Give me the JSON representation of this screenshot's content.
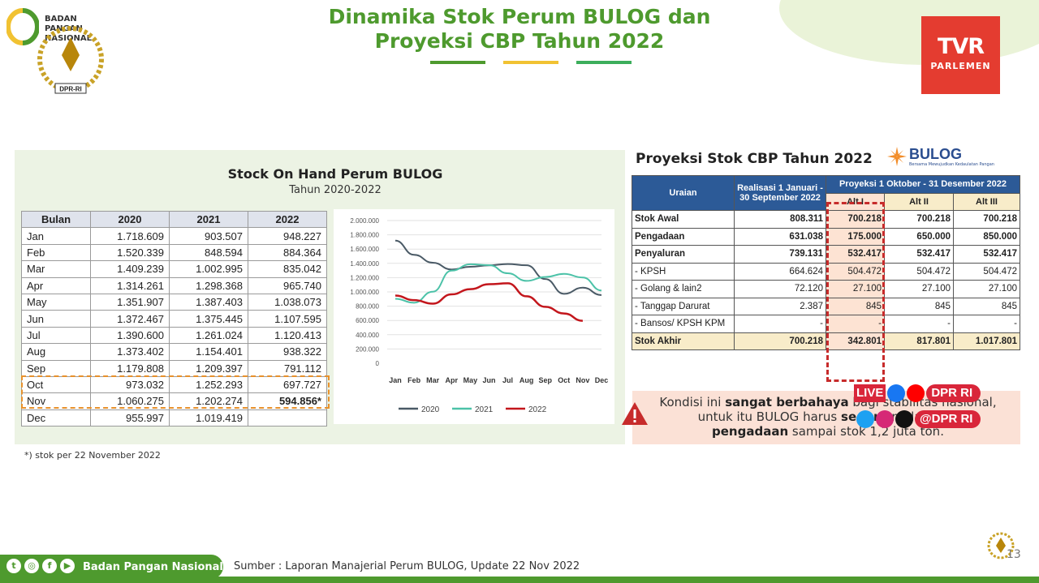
{
  "header": {
    "title_line1": "Dinamika Stok Perum BULOG dan",
    "title_line2": "Proyeksi CBP Tahun 2022",
    "logo_text": "BADAN\nPANGAN\nNASIONAL",
    "dpr_label": "DPR-RI",
    "tvr_big": "TVR",
    "tvr_small": "PARLEMEN",
    "bar_colors": [
      "#4e9a2e",
      "#f1c232",
      "#3cae5c"
    ]
  },
  "left": {
    "title": "Stock On Hand Perum BULOG",
    "subtitle": "Tahun 2020-2022",
    "table": {
      "headers": [
        "Bulan",
        "2020",
        "2021",
        "2022"
      ],
      "rows": [
        [
          "Jan",
          "1.718.609",
          "903.507",
          "948.227"
        ],
        [
          "Feb",
          "1.520.339",
          "848.594",
          "884.364"
        ],
        [
          "Mar",
          "1.409.239",
          "1.002.995",
          "835.042"
        ],
        [
          "Apr",
          "1.314.261",
          "1.298.368",
          "965.740"
        ],
        [
          "May",
          "1.351.907",
          "1.387.403",
          "1.038.073"
        ],
        [
          "Jun",
          "1.372.467",
          "1.375.445",
          "1.107.595"
        ],
        [
          "Jul",
          "1.390.600",
          "1.261.024",
          "1.120.413"
        ],
        [
          "Aug",
          "1.373.402",
          "1.154.401",
          "938.322"
        ],
        [
          "Sep",
          "1.179.808",
          "1.209.397",
          "791.112"
        ],
        [
          "Oct",
          "973.032",
          "1.252.293",
          "697.727"
        ],
        [
          "Nov",
          "1.060.275",
          "1.202.274",
          "594.856*"
        ],
        [
          "Dec",
          "955.997",
          "1.019.419",
          ""
        ]
      ]
    },
    "footnote": "*) stok per 22 November 2022"
  },
  "chart_data": {
    "type": "line",
    "categories": [
      "Jan",
      "Feb",
      "Mar",
      "Apr",
      "May",
      "Jun",
      "Jul",
      "Aug",
      "Sep",
      "Oct",
      "Nov",
      "Dec"
    ],
    "y_tick_labels": [
      "0",
      "200.000",
      "400.000",
      "600.000",
      "800.000",
      "1.000.000",
      "1.200.000",
      "1.400.000",
      "1.600.000",
      "1.800.000",
      "2.000.000"
    ],
    "ylim": [
      0,
      2000000
    ],
    "grid": true,
    "legend_position": "bottom",
    "series": [
      {
        "name": "2020",
        "color": "#4a5a66",
        "values": [
          1718609,
          1520339,
          1409239,
          1314261,
          1351907,
          1372467,
          1390600,
          1373402,
          1179808,
          973032,
          1060275,
          955997
        ]
      },
      {
        "name": "2021",
        "color": "#4cc2a8",
        "values": [
          903507,
          848594,
          1002995,
          1298368,
          1387403,
          1375445,
          1261024,
          1154401,
          1209397,
          1252293,
          1202274,
          1019419
        ]
      },
      {
        "name": "2022",
        "color": "#c3161c",
        "values": [
          948227,
          884364,
          835042,
          965740,
          1038073,
          1107595,
          1120413,
          938322,
          791112,
          697727,
          594856,
          null
        ]
      }
    ]
  },
  "right": {
    "title": "Proyeksi Stok CBP Tahun 2022",
    "bulog_text": "BULOG",
    "bulog_tag": "Bersama Mewujudkan Kedaulatan Pangan",
    "table": {
      "h_uraian": "Uraian",
      "h_realisasi": "Realisasi 1 Januari - 30 September 2022",
      "h_proyeksi": "Proyeksi 1 Oktober - 31 Desember 2022",
      "h_alt": [
        "Alt I",
        "Alt II",
        "Alt III"
      ],
      "rows": [
        {
          "label": "Stok Awal",
          "vals": [
            "808.311",
            "700.218",
            "700.218",
            "700.218"
          ],
          "indent": false
        },
        {
          "label": "Pengadaan",
          "vals": [
            "631.038",
            "175.000",
            "650.000",
            "850.000"
          ],
          "indent": false
        },
        {
          "label": "Penyaluran",
          "vals": [
            "739.131",
            "532.417",
            "532.417",
            "532.417"
          ],
          "indent": false
        },
        {
          "label": "- KPSH",
          "vals": [
            "664.624",
            "504.472",
            "504.472",
            "504.472"
          ],
          "indent": true
        },
        {
          "label": "- Golang & lain2",
          "vals": [
            "72.120",
            "27.100",
            "27.100",
            "27.100"
          ],
          "indent": true
        },
        {
          "label": "- Tanggap Darurat",
          "vals": [
            "2.387",
            "845",
            "845",
            "845"
          ],
          "indent": true
        },
        {
          "label": "- Bansos/ KPSH KPM",
          "vals": [
            "-",
            "-",
            "-",
            "-"
          ],
          "indent": true
        },
        {
          "label": "Stok Akhir",
          "vals": [
            "700.218",
            "342.801",
            "817.801",
            "1.017.801"
          ],
          "indent": false
        }
      ]
    },
    "warning": {
      "p1": "Kondisi ini ",
      "b1": "sangat berbahaya",
      "p2": " bagi stabilitas nasional,",
      "p3": "untuk itu BULOG harus ",
      "b2": "segera",
      "p4": " melakukan",
      "b3": "pengadaan",
      "p5": " sampai stok 1,2 juta ton."
    }
  },
  "overlay": {
    "live": "LIVE",
    "handle1": "DPR RI",
    "handle2": "@DPR RI"
  },
  "footer": {
    "org": "Badan Pangan Nasional",
    "source": "Sumber : Laporan Manajerial Perum BULOG, Update 22 Nov 2022",
    "page": "13"
  }
}
